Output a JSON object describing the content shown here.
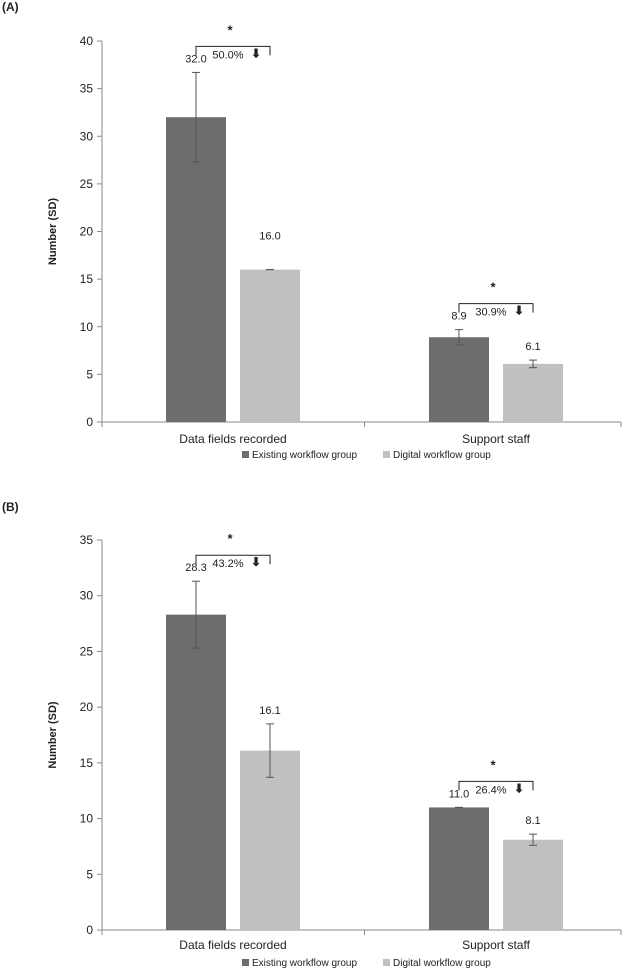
{
  "colors": {
    "existing": "#6d6d6d",
    "digital": "#c0c0c0",
    "axis": "#8a8a8a",
    "text": "#222222",
    "error_bar": "#555555"
  },
  "chart_data": [
    {
      "type": "bar",
      "panel_label": "(A)",
      "ylabel": "Number (SD)",
      "ylim": [
        0,
        40
      ],
      "yticks": [
        0,
        5,
        10,
        15,
        20,
        25,
        30,
        35,
        40
      ],
      "categories": [
        "Data fields recorded",
        "Support staff"
      ],
      "series": [
        {
          "name": "Existing workflow group",
          "values": [
            32.0,
            8.9
          ],
          "sd": [
            4.7,
            0.8
          ],
          "labels": [
            "32.0",
            "8.9"
          ]
        },
        {
          "name": "Digital workflow group",
          "values": [
            16.0,
            6.1
          ],
          "sd": [
            0.0,
            0.4
          ],
          "labels": [
            "16.0",
            "6.1"
          ]
        }
      ],
      "annotations": [
        {
          "category": "Data fields recorded",
          "star": "*",
          "text": "50.0%",
          "arrow": "⬇"
        },
        {
          "category": "Support staff",
          "star": "*",
          "text": "30.9%",
          "arrow": "⬇"
        }
      ]
    },
    {
      "type": "bar",
      "panel_label": "(B)",
      "ylabel": "Number (SD)",
      "ylim": [
        0,
        35
      ],
      "yticks": [
        0,
        5,
        10,
        15,
        20,
        25,
        30,
        35
      ],
      "categories": [
        "Data fields recorded",
        "Support staff"
      ],
      "series": [
        {
          "name": "Existing workflow group",
          "values": [
            28.3,
            11.0
          ],
          "sd": [
            3.0,
            0.0
          ],
          "labels": [
            "28.3",
            "11.0"
          ]
        },
        {
          "name": "Digital workflow group",
          "values": [
            16.1,
            8.1
          ],
          "sd": [
            2.4,
            0.5
          ],
          "labels": [
            "16.1",
            "8.1"
          ]
        }
      ],
      "annotations": [
        {
          "category": "Data fields recorded",
          "star": "*",
          "text": "43.2%",
          "arrow": "⬇"
        },
        {
          "category": "Support staff",
          "star": "*",
          "text": "26.4%",
          "arrow": "⬇"
        }
      ]
    }
  ]
}
